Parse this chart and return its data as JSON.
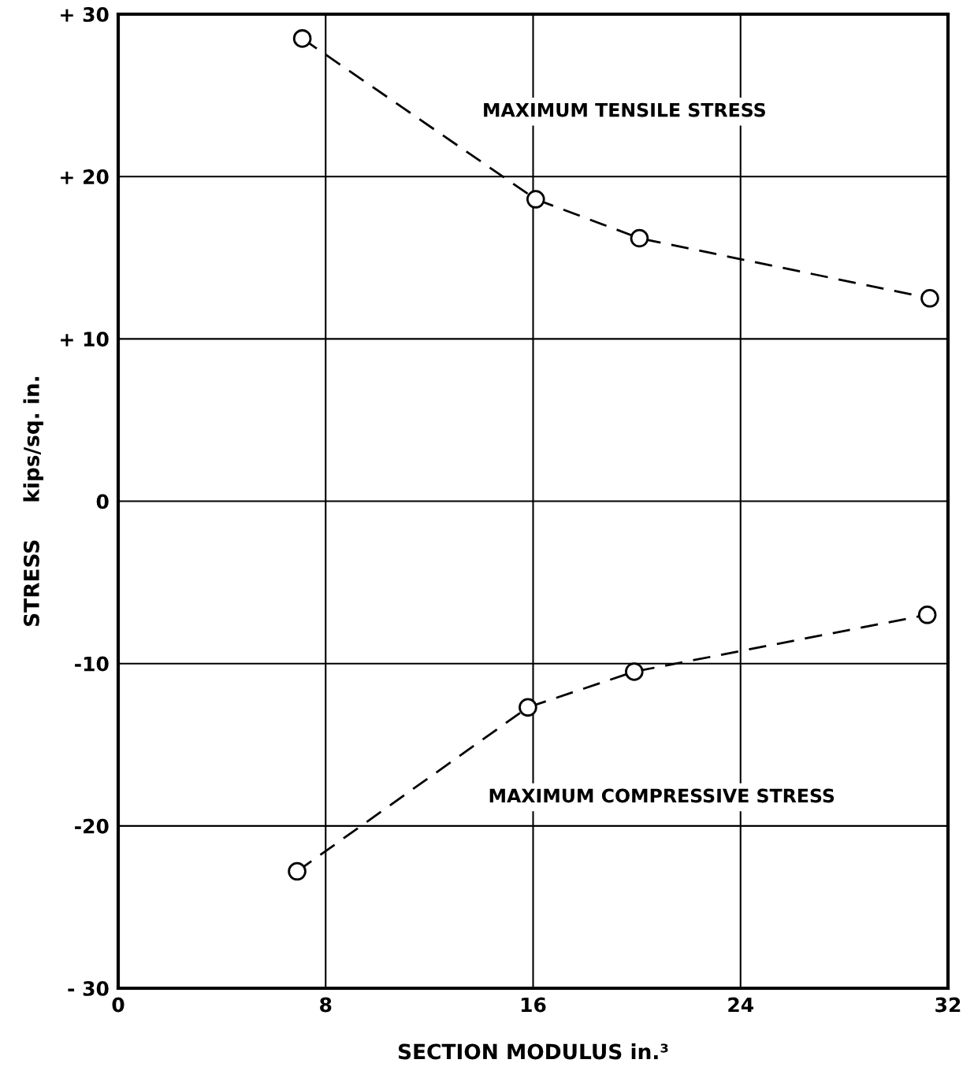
{
  "chart_data": {
    "type": "line",
    "xlabel": "SECTION MODULUS in.³",
    "ylabel": "STRESS     kips/sq. in.",
    "xlim": [
      0,
      32
    ],
    "xticks": [
      0,
      8,
      16,
      24,
      32
    ],
    "ylim": [
      -30,
      30
    ],
    "yticks": [
      {
        "value": -30,
        "label": "- 30"
      },
      {
        "value": -20,
        "label": "-20"
      },
      {
        "value": -10,
        "label": "-10"
      },
      0,
      {
        "value": 10,
        "label": "+ 10"
      },
      {
        "value": 20,
        "label": "+ 20"
      },
      {
        "value": 30,
        "label": "+ 30"
      }
    ],
    "grid": true,
    "legend": false,
    "marker": "circle",
    "line_style": "dashed",
    "series": [
      {
        "name": "MAXIMUM TENSILE STRESS",
        "color": "#000000",
        "x": [
          7.1,
          16.1,
          20.1,
          31.3
        ],
        "values": [
          28.5,
          18.6,
          16.2,
          12.5
        ]
      },
      {
        "name": "MAXIMUM COMPRESSIVE STRESS",
        "color": "#000000",
        "x": [
          6.9,
          15.8,
          19.9,
          31.2
        ],
        "values": [
          -22.8,
          -12.7,
          -10.5,
          -7.0
        ]
      }
    ]
  }
}
